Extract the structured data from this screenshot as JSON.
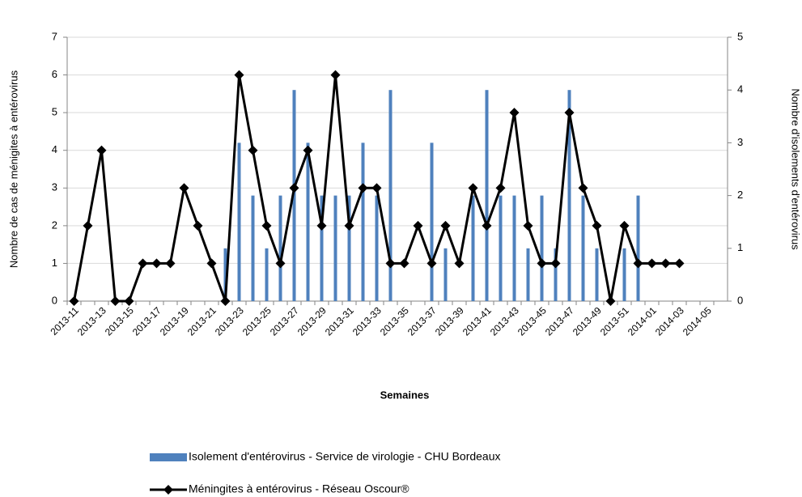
{
  "chart_data": {
    "type": "bar-line",
    "x_label": "Semaines",
    "y_label": "Nombre de cas de ménigites à entérovirus",
    "y2_label": "Nombre d'isolements d'entérovirus",
    "categories": [
      "2013-11",
      null,
      "2013-13",
      null,
      "2013-15",
      null,
      "2013-17",
      null,
      "2013-19",
      null,
      "2013-21",
      null,
      "2013-23",
      null,
      "2013-25",
      null,
      "2013-27",
      null,
      "2013-29",
      null,
      "2013-31",
      null,
      "2013-33",
      null,
      "2013-35",
      null,
      "2013-37",
      null,
      "2013-39",
      null,
      "2013-41",
      null,
      "2013-43",
      null,
      "2013-45",
      null,
      "2013-47",
      null,
      "2013-49",
      null,
      "2013-51",
      null,
      "2014-01",
      null,
      "2014-03",
      null,
      "2014-05",
      null
    ],
    "series": [
      {
        "name": "Isolement d'entérovirus - Service de virologie - CHU Bordeaux",
        "type": "bar",
        "axis": "y2",
        "color": "#4f81bd",
        "values": [
          0,
          0,
          0,
          0,
          0,
          0,
          0,
          0,
          0,
          0,
          0,
          1,
          3,
          2,
          1,
          2,
          4,
          3,
          2,
          2,
          2,
          3,
          2,
          4,
          0,
          0,
          3,
          1,
          0,
          2,
          4,
          2,
          2,
          1,
          2,
          1,
          4,
          2,
          1,
          0,
          1,
          2,
          0,
          0,
          0,
          0,
          0,
          0
        ]
      },
      {
        "name": "Méningites à entérovirus - Réseau Oscour®",
        "type": "line",
        "axis": "y",
        "color": "#000000",
        "values": [
          0,
          2,
          4,
          0,
          0,
          1,
          1,
          1,
          3,
          2,
          1,
          0,
          6,
          4,
          2,
          1,
          3,
          4,
          2,
          6,
          2,
          3,
          3,
          1,
          1,
          2,
          1,
          2,
          1,
          3,
          2,
          3,
          5,
          2,
          1,
          1,
          5,
          3,
          2,
          0,
          2,
          1,
          1,
          1,
          1,
          null,
          null,
          null
        ]
      }
    ],
    "ylim": [
      0,
      7
    ],
    "yticks": [
      0,
      1,
      2,
      3,
      4,
      5,
      6,
      7
    ],
    "y2lim": [
      0,
      5
    ],
    "y2ticks": [
      0,
      1,
      2,
      3,
      4,
      5
    ],
    "grid": true
  }
}
